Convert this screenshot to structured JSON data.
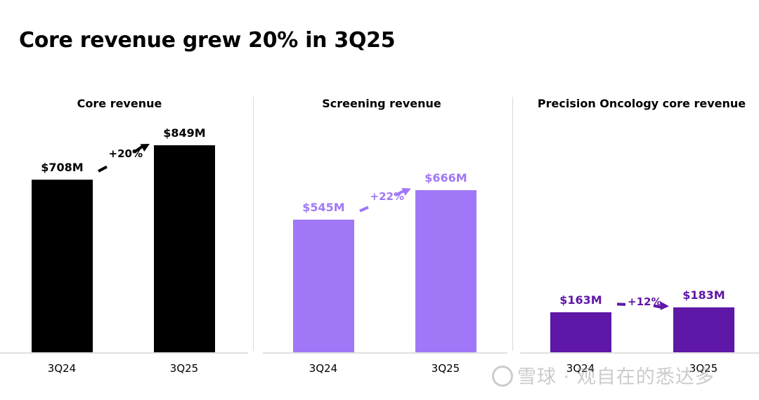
{
  "title": "Core revenue grew 20% in 3Q25",
  "colors": {
    "core": "#000000",
    "screening": "#a078f7",
    "oncology": "#5e17a6"
  },
  "watermark": "雪球 · 观自在的悉达多",
  "chart_data": [
    {
      "type": "bar",
      "title": "Core revenue",
      "categories": [
        "3Q24",
        "3Q25"
      ],
      "values": [
        708,
        849
      ],
      "value_labels": [
        "$708M",
        "$849M"
      ],
      "growth_label": "+20%",
      "unit": "$M",
      "color": "#000000",
      "ylim": [
        0,
        1000
      ]
    },
    {
      "type": "bar",
      "title": "Screening revenue",
      "categories": [
        "3Q24",
        "3Q25"
      ],
      "values": [
        545,
        666
      ],
      "value_labels": [
        "$545M",
        "$666M"
      ],
      "growth_label": "+22%",
      "unit": "$M",
      "color": "#a078f7",
      "ylim": [
        0,
        1000
      ]
    },
    {
      "type": "bar",
      "title": "Precision Oncology core revenue",
      "categories": [
        "3Q24",
        "3Q25"
      ],
      "values": [
        163,
        183
      ],
      "value_labels": [
        "$163M",
        "$183M"
      ],
      "growth_label": "+12%",
      "unit": "$M",
      "color": "#5e17a6",
      "ylim": [
        0,
        1000
      ]
    }
  ]
}
